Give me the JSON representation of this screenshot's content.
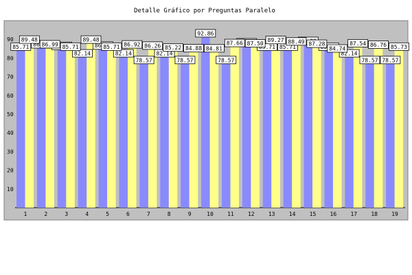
{
  "colors": {
    "plot_bg": "#c0c0c0",
    "series_a": "#8a8aff",
    "series_b": "#ffff8a",
    "border": "#808080",
    "label_bg": "#ffffff"
  },
  "chart_data": {
    "type": "bar",
    "title": "Detalle Gráfico por Preguntas Paralelo",
    "categories": [
      "1",
      "2",
      "3",
      "4",
      "5",
      "6",
      "7",
      "8",
      "9",
      "10",
      "11",
      "12",
      "13",
      "14",
      "15",
      "16",
      "17",
      "18",
      "19"
    ],
    "ylim": [
      0,
      100
    ],
    "yticks": [
      "10",
      "20",
      "30",
      "40",
      "50",
      "60",
      "70",
      "80",
      "90"
    ],
    "grid": false,
    "legend": "none",
    "series": [
      {
        "values": [
          85.71,
          86.95,
          86.13,
          82.14,
          86.31,
          82.14,
          78.57,
          82.14,
          78.57,
          92.86,
          78.57,
          88.06,
          85.71,
          85.71,
          88.8,
          85.71,
          82.14,
          78.57,
          78.57
        ]
      },
      {
        "values": [
          89.48,
          86.99,
          85.71,
          89.48,
          85.71,
          86.92,
          86.26,
          85.22,
          84.88,
          84.81,
          87.66,
          87.5,
          89.27,
          88.49,
          87.28,
          84.74,
          87.54,
          86.76,
          85.73
        ]
      }
    ],
    "data_labels": [
      [
        "85.71",
        "86.95",
        "86.13",
        "82.14",
        "86.31",
        "82.14",
        "78.57",
        "82.14",
        "78.57",
        "92.86",
        "78.57",
        "88.06",
        "85.71",
        "85.71",
        "88.80",
        "85.71",
        "82.14",
        "78.57",
        "78.57"
      ],
      [
        "89.48",
        "86.99",
        "85.71",
        "89.48",
        "85.71",
        "86.92",
        "86.26",
        "85.22",
        "84.88",
        "84.81",
        "87.66",
        "87.50",
        "89.27",
        "88.49",
        "87.28",
        "84.74",
        "87.54",
        "86.76",
        "85.73"
      ]
    ]
  }
}
